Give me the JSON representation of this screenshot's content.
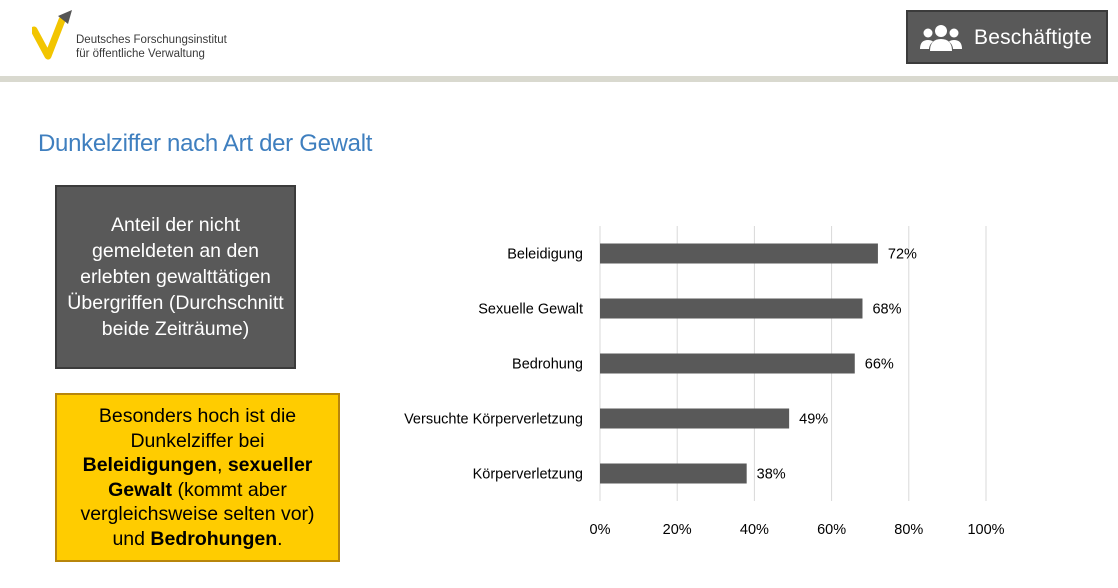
{
  "header": {
    "logo": {
      "line1": "Deutsches Forschungsinstitut",
      "line2": "für öffentliche Verwaltung",
      "accent_color": "#f2c500",
      "arrow_color": "#555555"
    },
    "badge": {
      "label": "Beschäftigte",
      "icon": "people-icon"
    }
  },
  "page": {
    "title": "Dunkelziffer nach Art der Gewalt"
  },
  "infobox": {
    "text": "Anteil der nicht gemeldeten an den erlebten gewalttätigen Übergriffen (Durchschnitt beide Zeiträume)"
  },
  "highlight": {
    "part1": "Besonders hoch ist die Dunkelziffer bei ",
    "bold1": "Beleidigungen",
    "part2": ", ",
    "bold2": "sexueller Gewalt",
    "part3": " (kommt aber vergleichsweise selten vor) und ",
    "bold3": "Bedrohungen",
    "part4": "."
  },
  "colors": {
    "bar": "#595959",
    "grid": "#d9d9d9",
    "title": "#3f7fbf",
    "highlight": "#ffcc00"
  },
  "chart_data": {
    "type": "bar",
    "orientation": "horizontal",
    "title": "",
    "xlabel": "",
    "ylabel": "",
    "categories": [
      "Beleidigung",
      "Sexuelle Gewalt",
      "Bedrohung",
      "Versuchte Körperverletzung",
      "Körperverletzung"
    ],
    "values": [
      72,
      68,
      66,
      49,
      38
    ],
    "value_labels": [
      "72%",
      "68%",
      "66%",
      "49%",
      "38%"
    ],
    "xlim": [
      0,
      100
    ],
    "xticks": [
      0,
      20,
      40,
      60,
      80,
      100
    ],
    "xtick_labels": [
      "0%",
      "20%",
      "40%",
      "60%",
      "80%",
      "100%"
    ],
    "grid": true,
    "legend": "none"
  }
}
